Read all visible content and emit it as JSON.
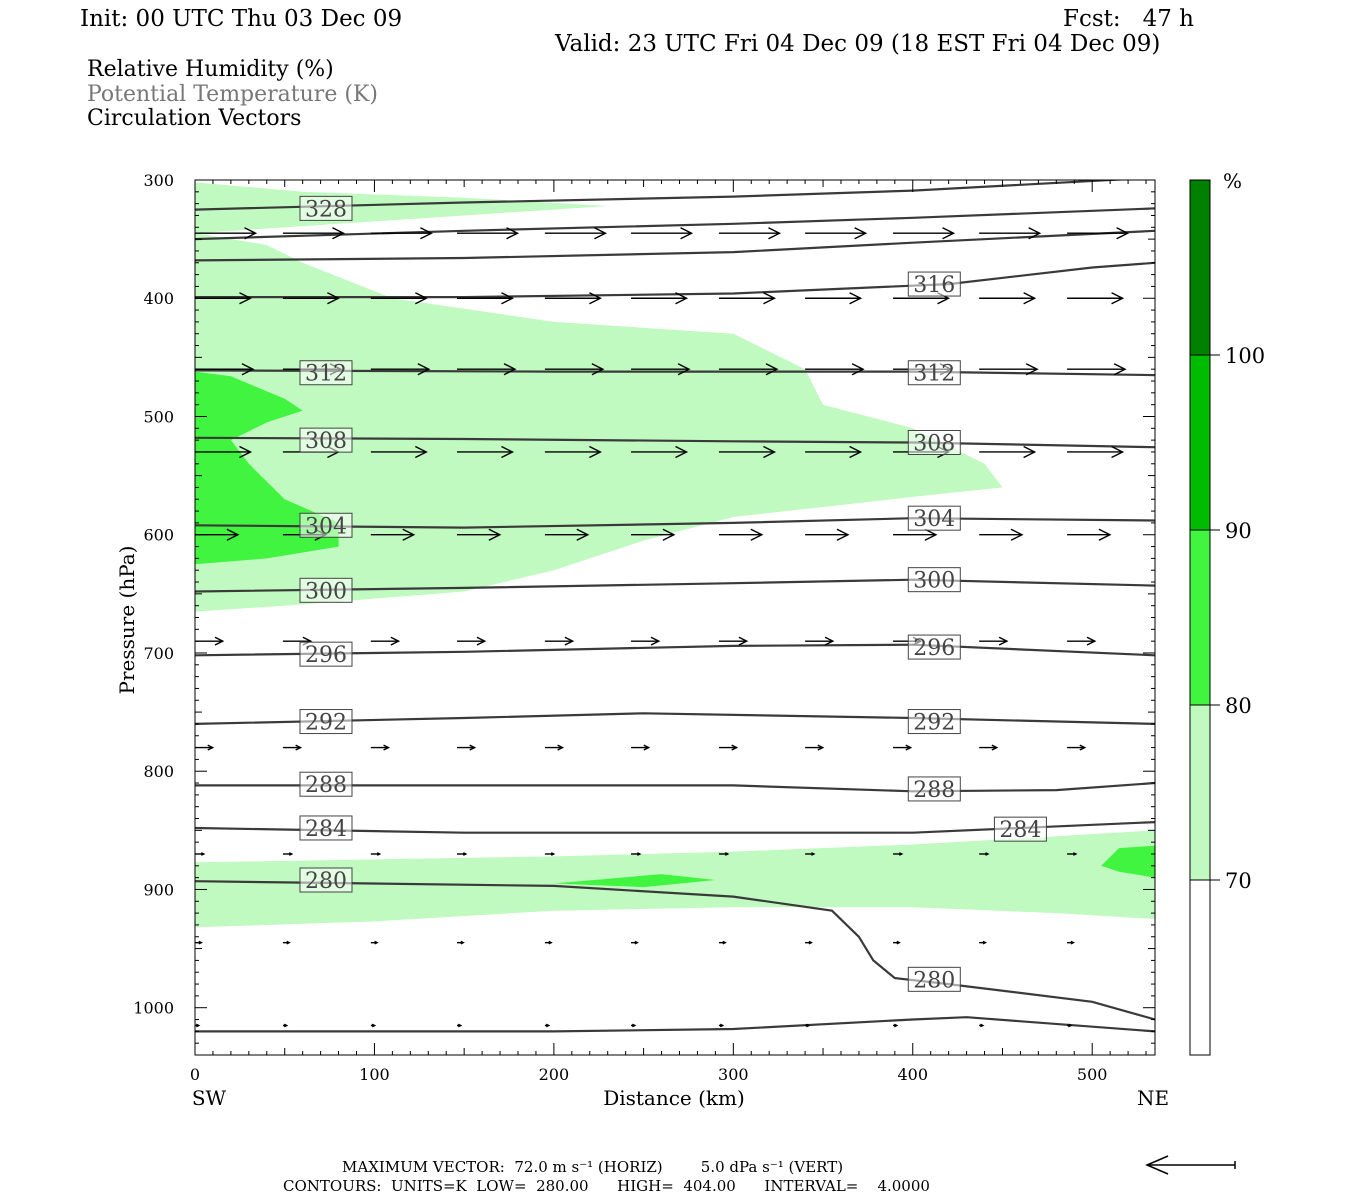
{
  "header": {
    "init": "Init: 00 UTC Thu 03 Dec 09",
    "fcst": "Fcst:   47 h",
    "valid": "Valid: 23 UTC Fri 04 Dec 09 (18 EST Fri 04 Dec 09)"
  },
  "legend": {
    "line1": "Relative Humidity (%)",
    "line2": "Potential Temperature (K)",
    "line3": "Circulation Vectors"
  },
  "footer": {
    "line1": "MAXIMUM VECTOR:  72.0 m s⁻¹ (HORIZ)        5.0 dPa s⁻¹ (VERT)",
    "line2": "CONTOURS:  UNITS=K  LOW=  280.00      HIGH=  404.00      INTERVAL=    4.0000"
  },
  "colors": {
    "rh_70_80": "#c0fac0",
    "rh_80_90": "#40f440",
    "rh_90_100": "#00bc00",
    "rh_100_plus": "#008000",
    "theta_line": "#3a3a3a",
    "vector": "#000000"
  },
  "chart_data": {
    "type": "cross-section",
    "xlabel": "Distance (km)",
    "ylabel": "Pressure (hPa)",
    "xlim": [
      0,
      535
    ],
    "ylim": [
      1040,
      300
    ],
    "x_ticks": [
      0,
      100,
      200,
      300,
      400,
      500
    ],
    "y_ticks": [
      300,
      400,
      500,
      600,
      700,
      800,
      900,
      1000
    ],
    "endpoints": {
      "left": "SW",
      "right": "NE"
    },
    "colorbar": {
      "unit": "%",
      "levels": [
        70,
        80,
        90,
        100
      ]
    },
    "theta_contours": [
      {
        "label": "328",
        "points": [
          [
            0,
            325
          ],
          [
            150,
            319
          ],
          [
            300,
            314
          ],
          [
            400,
            309
          ],
          [
            535,
            298
          ]
        ]
      },
      {
        "label": "",
        "points": [
          [
            0,
            350
          ],
          [
            150,
            343
          ],
          [
            300,
            337
          ],
          [
            400,
            332
          ],
          [
            535,
            324
          ]
        ]
      },
      {
        "label": "",
        "points": [
          [
            0,
            368
          ],
          [
            150,
            366
          ],
          [
            300,
            361
          ],
          [
            400,
            353
          ],
          [
            535,
            343
          ]
        ]
      },
      {
        "label": "316",
        "points": [
          [
            0,
            399
          ],
          [
            150,
            399
          ],
          [
            300,
            396
          ],
          [
            420,
            388
          ],
          [
            500,
            374
          ],
          [
            535,
            370
          ]
        ]
      },
      {
        "label": "312",
        "points": [
          [
            0,
            461
          ],
          [
            200,
            462
          ],
          [
            400,
            462
          ],
          [
            535,
            465
          ]
        ]
      },
      {
        "label": "308",
        "points": [
          [
            0,
            518
          ],
          [
            150,
            519
          ],
          [
            300,
            521
          ],
          [
            400,
            522
          ],
          [
            535,
            526
          ]
        ]
      },
      {
        "label": "304",
        "points": [
          [
            0,
            592
          ],
          [
            150,
            594
          ],
          [
            300,
            590
          ],
          [
            400,
            586
          ],
          [
            535,
            588
          ]
        ]
      },
      {
        "label": "300",
        "points": [
          [
            0,
            648
          ],
          [
            150,
            645
          ],
          [
            300,
            641
          ],
          [
            400,
            638
          ],
          [
            535,
            643
          ]
        ]
      },
      {
        "label": "296",
        "points": [
          [
            0,
            702
          ],
          [
            150,
            699
          ],
          [
            300,
            694
          ],
          [
            400,
            693
          ],
          [
            535,
            702
          ]
        ]
      },
      {
        "label": "292",
        "points": [
          [
            0,
            760
          ],
          [
            150,
            755
          ],
          [
            250,
            751
          ],
          [
            400,
            755
          ],
          [
            535,
            760
          ]
        ]
      },
      {
        "label": "288",
        "points": [
          [
            0,
            812
          ],
          [
            150,
            812
          ],
          [
            300,
            812
          ],
          [
            400,
            817
          ],
          [
            480,
            816
          ],
          [
            535,
            810
          ]
        ]
      },
      {
        "label": "284",
        "points": [
          [
            0,
            848
          ],
          [
            150,
            852
          ],
          [
            300,
            852
          ],
          [
            400,
            852
          ],
          [
            535,
            843
          ]
        ]
      },
      {
        "label": "280",
        "points": [
          [
            0,
            893
          ],
          [
            200,
            897
          ],
          [
            300,
            906
          ],
          [
            355,
            918
          ],
          [
            370,
            940
          ],
          [
            378,
            960
          ],
          [
            390,
            975
          ],
          [
            420,
            980
          ],
          [
            500,
            995
          ],
          [
            535,
            1010
          ]
        ]
      },
      {
        "label": "",
        "points": [
          [
            0,
            1020
          ],
          [
            200,
            1020
          ],
          [
            300,
            1018
          ],
          [
            400,
            1010
          ],
          [
            430,
            1008
          ],
          [
            535,
            1020
          ]
        ]
      }
    ],
    "contour_labels": [
      {
        "text": "328",
        "x": 73,
        "p": 324
      },
      {
        "text": "316",
        "x": 412,
        "p": 388
      },
      {
        "text": "312",
        "x": 73,
        "p": 463
      },
      {
        "text": "312",
        "x": 412,
        "p": 463
      },
      {
        "text": "308",
        "x": 73,
        "p": 520
      },
      {
        "text": "308",
        "x": 412,
        "p": 522
      },
      {
        "text": "304",
        "x": 73,
        "p": 592
      },
      {
        "text": "304",
        "x": 412,
        "p": 586
      },
      {
        "text": "300",
        "x": 73,
        "p": 647
      },
      {
        "text": "300",
        "x": 412,
        "p": 638
      },
      {
        "text": "296",
        "x": 73,
        "p": 701
      },
      {
        "text": "296",
        "x": 412,
        "p": 695
      },
      {
        "text": "292",
        "x": 73,
        "p": 758
      },
      {
        "text": "292",
        "x": 412,
        "p": 758
      },
      {
        "text": "288",
        "x": 73,
        "p": 811
      },
      {
        "text": "288",
        "x": 412,
        "p": 815
      },
      {
        "text": "284",
        "x": 73,
        "p": 848
      },
      {
        "text": "284",
        "x": 460,
        "p": 849
      },
      {
        "text": "280",
        "x": 73,
        "p": 892
      },
      {
        "text": "280",
        "x": 412,
        "p": 976
      }
    ],
    "rh_regions": [
      {
        "level": "70-80",
        "points": [
          [
            0,
            302
          ],
          [
            60,
            310
          ],
          [
            150,
            315
          ],
          [
            230,
            322
          ],
          [
            150,
            330
          ],
          [
            0,
            345
          ],
          [
            0,
            302
          ]
        ]
      },
      {
        "level": "70-80",
        "points": [
          [
            0,
            345
          ],
          [
            40,
            355
          ],
          [
            60,
            370
          ],
          [
            110,
            400
          ],
          [
            200,
            420
          ],
          [
            300,
            430
          ],
          [
            320,
            445
          ],
          [
            340,
            460
          ],
          [
            350,
            490
          ],
          [
            400,
            510
          ],
          [
            440,
            540
          ],
          [
            450,
            560
          ],
          [
            400,
            568
          ],
          [
            300,
            585
          ],
          [
            250,
            605
          ],
          [
            200,
            630
          ],
          [
            150,
            648
          ],
          [
            50,
            660
          ],
          [
            0,
            665
          ],
          [
            0,
            345
          ]
        ]
      },
      {
        "level": "80-90",
        "points": [
          [
            0,
            462
          ],
          [
            20,
            466
          ],
          [
            50,
            485
          ],
          [
            60,
            495
          ],
          [
            40,
            505
          ],
          [
            20,
            520
          ],
          [
            30,
            540
          ],
          [
            50,
            570
          ],
          [
            80,
            590
          ],
          [
            80,
            610
          ],
          [
            40,
            620
          ],
          [
            0,
            625
          ],
          [
            0,
            462
          ]
        ]
      },
      {
        "level": "70-80",
        "points": [
          [
            0,
            877
          ],
          [
            200,
            872
          ],
          [
            300,
            868
          ],
          [
            400,
            862
          ],
          [
            480,
            855
          ],
          [
            535,
            850
          ],
          [
            535,
            925
          ],
          [
            480,
            920
          ],
          [
            400,
            915
          ],
          [
            300,
            915
          ],
          [
            200,
            918
          ],
          [
            100,
            927
          ],
          [
            0,
            932
          ],
          [
            0,
            877
          ]
        ]
      },
      {
        "level": "80-90",
        "points": [
          [
            200,
            895
          ],
          [
            260,
            887
          ],
          [
            290,
            892
          ],
          [
            250,
            898
          ],
          [
            200,
            895
          ]
        ]
      },
      {
        "level": "80-90",
        "points": [
          [
            515,
            865
          ],
          [
            535,
            863
          ],
          [
            535,
            890
          ],
          [
            515,
            885
          ],
          [
            505,
            880
          ],
          [
            515,
            865
          ]
        ]
      }
    ],
    "vector_rows": [
      {
        "p": 345,
        "u": 4.8
      },
      {
        "p": 400,
        "u": 4.4
      },
      {
        "p": 460,
        "u": 4.6
      },
      {
        "p": 530,
        "u": 4.4
      },
      {
        "p": 600,
        "u": 3.4
      },
      {
        "p": 690,
        "u": 2.2
      },
      {
        "p": 780,
        "u": 1.4
      },
      {
        "p": 870,
        "u": 0.7
      },
      {
        "p": 945,
        "u": 0.5
      },
      {
        "p": 1015,
        "u": 0.3
      }
    ],
    "vector_columns": [
      0,
      49,
      98,
      146,
      195,
      243,
      292,
      340,
      389,
      437,
      486
    ],
    "reference_vector": {
      "u": 72.0,
      "w": 5.0
    }
  }
}
